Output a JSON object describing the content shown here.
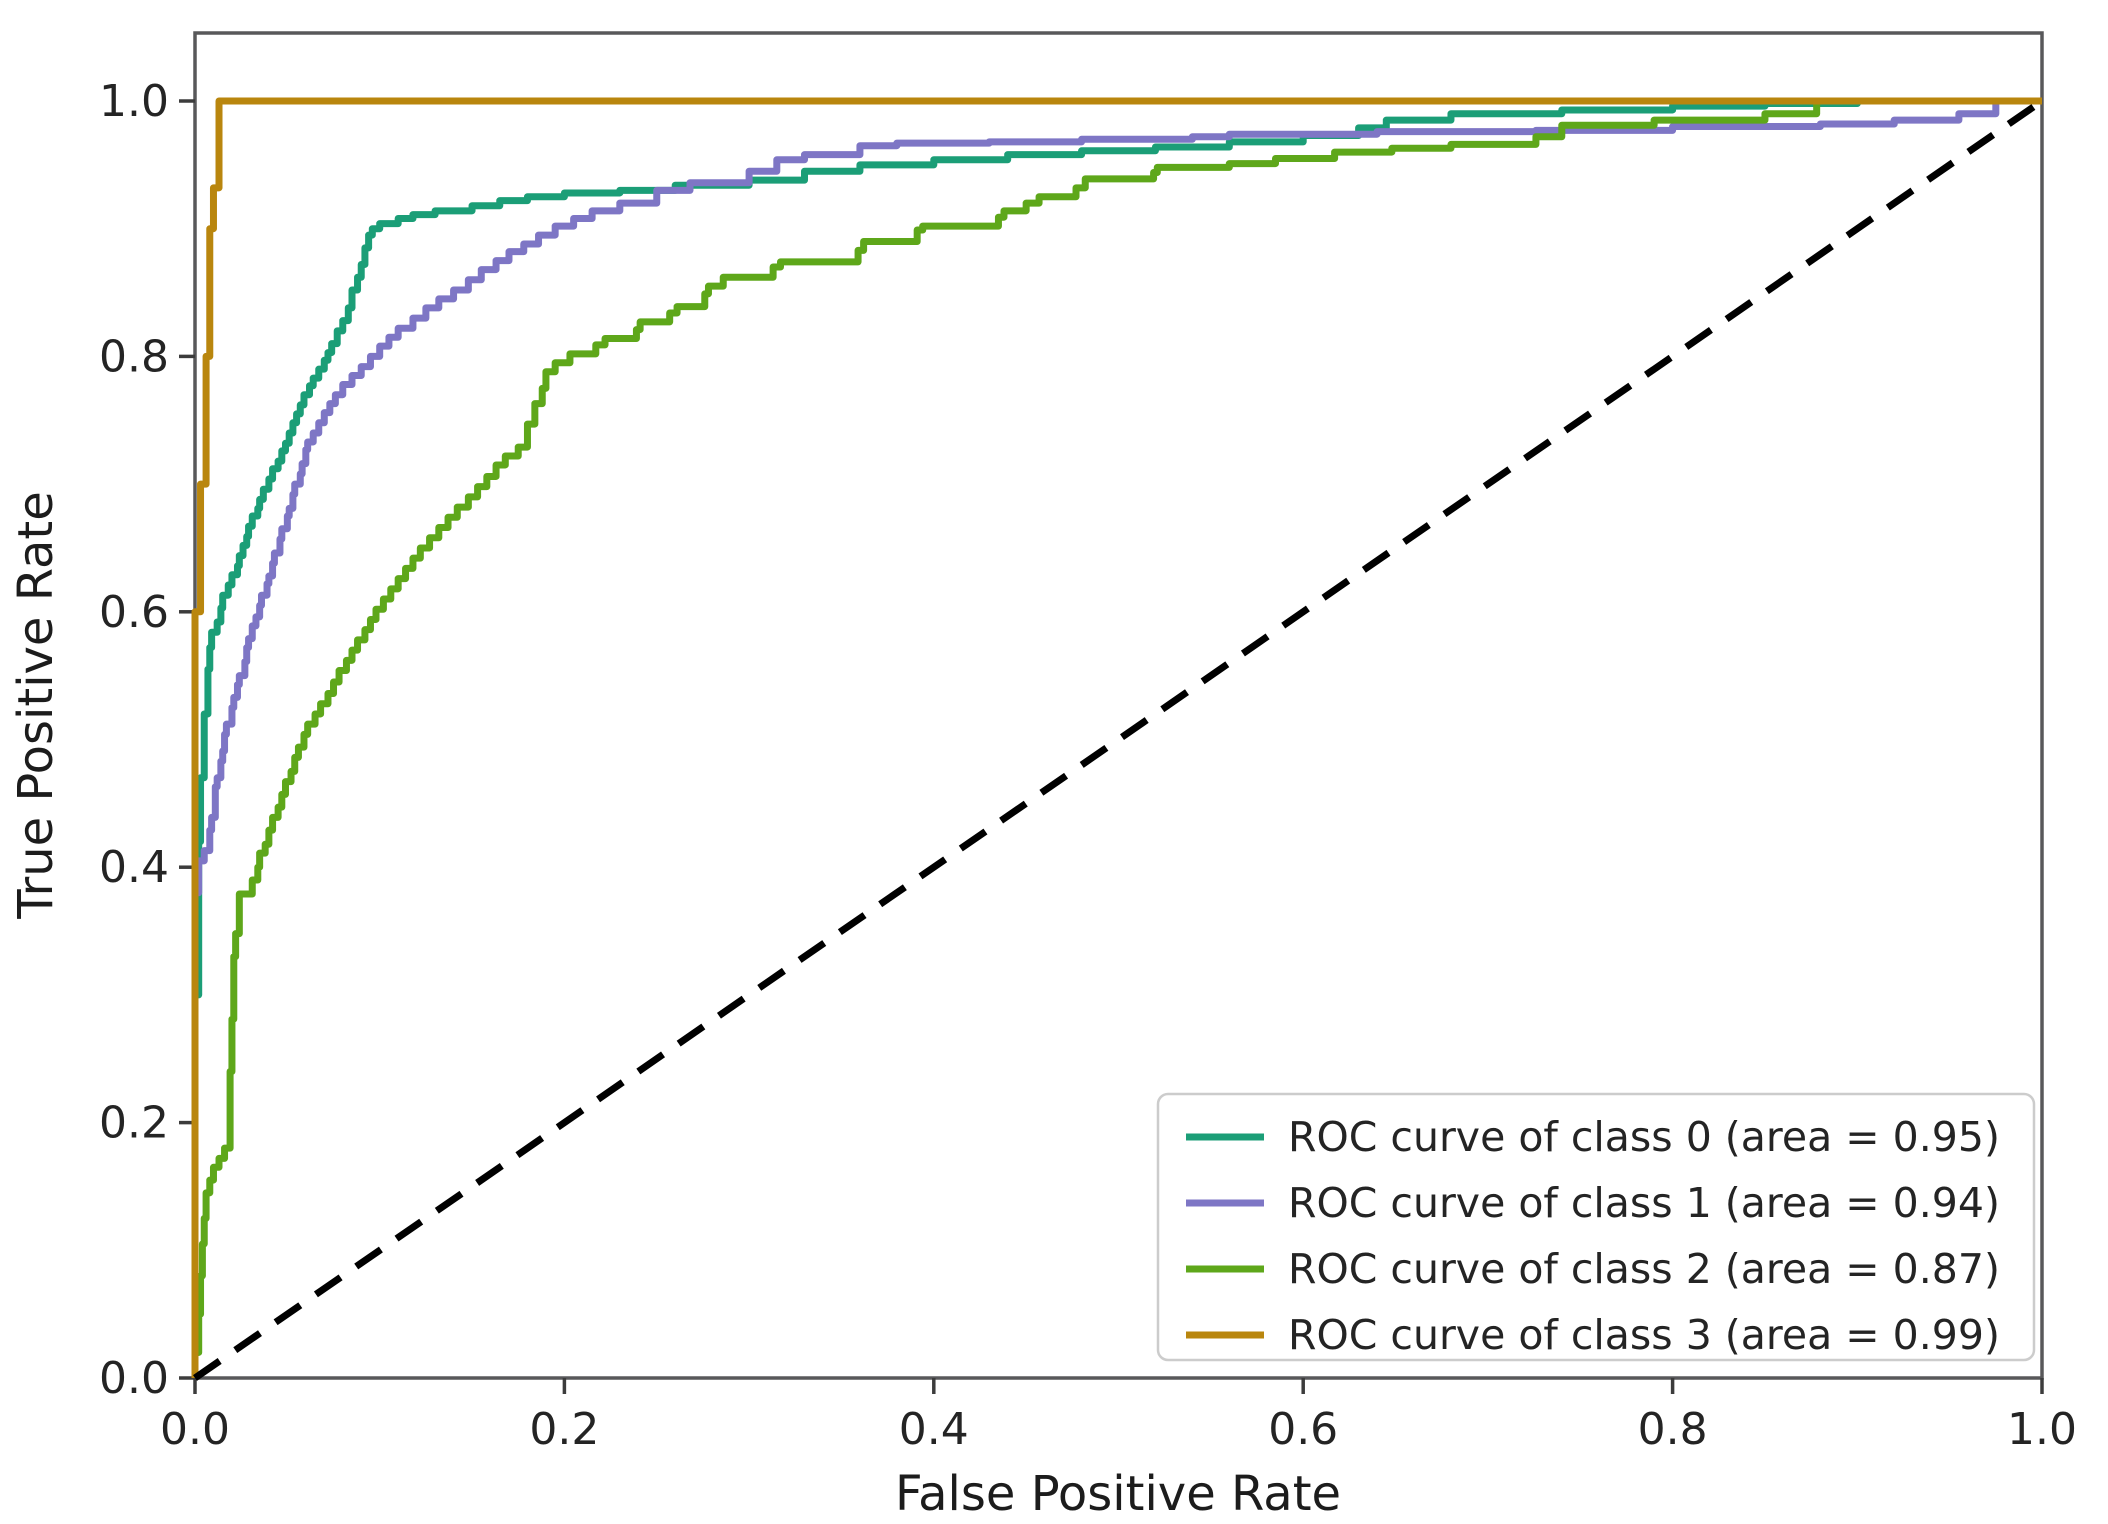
{
  "chart_data": {
    "type": "line",
    "title": "",
    "xlabel": "False Positive Rate",
    "ylabel": "True Positive Rate",
    "xlim": [
      0.0,
      1.0
    ],
    "ylim": [
      0.0,
      1.053
    ],
    "grid": false,
    "legend_position": "lower right",
    "x_tick_values": [
      0.0,
      0.2,
      0.4,
      0.6,
      0.8,
      1.0
    ],
    "x_tick_labels": [
      "0.0",
      "0.2",
      "0.4",
      "0.6",
      "0.8",
      "1.0"
    ],
    "y_tick_values": [
      0.0,
      0.2,
      0.4,
      0.6,
      0.8,
      1.0
    ],
    "y_tick_labels": [
      "0.0",
      "0.2",
      "0.4",
      "0.6",
      "0.8",
      "1.0"
    ],
    "series": [
      {
        "name": "roc-class-0",
        "label": "ROC curve of class 0 (area = 0.95)",
        "auc": 0.95,
        "color": "#1b9e77",
        "dash": null,
        "step": true,
        "points": [
          [
            0,
            0
          ],
          [
            0.002,
            0.3
          ],
          [
            0.003,
            0.42
          ],
          [
            0.005,
            0.47
          ],
          [
            0.007,
            0.52
          ],
          [
            0.008,
            0.555
          ],
          [
            0.009,
            0.572
          ],
          [
            0.012,
            0.584
          ],
          [
            0.014,
            0.592
          ],
          [
            0.015,
            0.603
          ],
          [
            0.018,
            0.613
          ],
          [
            0.02,
            0.621
          ],
          [
            0.023,
            0.629
          ],
          [
            0.024,
            0.636
          ],
          [
            0.026,
            0.644
          ],
          [
            0.028,
            0.652
          ],
          [
            0.029,
            0.659
          ],
          [
            0.031,
            0.667
          ],
          [
            0.034,
            0.675
          ],
          [
            0.035,
            0.681
          ],
          [
            0.037,
            0.688
          ],
          [
            0.04,
            0.696
          ],
          [
            0.042,
            0.704
          ],
          [
            0.045,
            0.712
          ],
          [
            0.047,
            0.718
          ],
          [
            0.049,
            0.726
          ],
          [
            0.051,
            0.732
          ],
          [
            0.053,
            0.74
          ],
          [
            0.055,
            0.748
          ],
          [
            0.057,
            0.755
          ],
          [
            0.059,
            0.762
          ],
          [
            0.062,
            0.77
          ],
          [
            0.064,
            0.777
          ],
          [
            0.067,
            0.783
          ],
          [
            0.07,
            0.79
          ],
          [
            0.072,
            0.797
          ],
          [
            0.074,
            0.803
          ],
          [
            0.077,
            0.81
          ],
          [
            0.08,
            0.82
          ],
          [
            0.083,
            0.828
          ],
          [
            0.085,
            0.838
          ],
          [
            0.088,
            0.852
          ],
          [
            0.09,
            0.862
          ],
          [
            0.092,
            0.872
          ],
          [
            0.094,
            0.885
          ],
          [
            0.096,
            0.895
          ],
          [
            0.1,
            0.9
          ],
          [
            0.11,
            0.904
          ],
          [
            0.118,
            0.908
          ],
          [
            0.13,
            0.911
          ],
          [
            0.15,
            0.914
          ],
          [
            0.165,
            0.918
          ],
          [
            0.18,
            0.922
          ],
          [
            0.2,
            0.925
          ],
          [
            0.23,
            0.928
          ],
          [
            0.26,
            0.93
          ],
          [
            0.3,
            0.934
          ],
          [
            0.33,
            0.938
          ],
          [
            0.36,
            0.945
          ],
          [
            0.4,
            0.95
          ],
          [
            0.44,
            0.954
          ],
          [
            0.48,
            0.958
          ],
          [
            0.52,
            0.961
          ],
          [
            0.56,
            0.964
          ],
          [
            0.6,
            0.968
          ],
          [
            0.63,
            0.973
          ],
          [
            0.645,
            0.979
          ],
          [
            0.68,
            0.985
          ],
          [
            0.74,
            0.99
          ],
          [
            0.8,
            0.993
          ],
          [
            0.85,
            0.996
          ],
          [
            0.9,
            0.998
          ],
          [
            0.95,
            1
          ],
          [
            1,
            1
          ]
        ]
      },
      {
        "name": "roc-class-1",
        "label": "ROC curve of class 1 (area = 0.94)",
        "auc": 0.94,
        "color": "#7e76c5",
        "dash": null,
        "step": true,
        "points": [
          [
            0,
            0
          ],
          [
            0.002,
            0.38
          ],
          [
            0.005,
            0.405
          ],
          [
            0.008,
            0.413
          ],
          [
            0.009,
            0.429
          ],
          [
            0.011,
            0.439
          ],
          [
            0.012,
            0.463
          ],
          [
            0.014,
            0.47
          ],
          [
            0.015,
            0.483
          ],
          [
            0.016,
            0.491
          ],
          [
            0.017,
            0.504
          ],
          [
            0.02,
            0.512
          ],
          [
            0.021,
            0.525
          ],
          [
            0.023,
            0.533
          ],
          [
            0.024,
            0.543
          ],
          [
            0.027,
            0.55
          ],
          [
            0.028,
            0.561
          ],
          [
            0.029,
            0.572
          ],
          [
            0.031,
            0.579
          ],
          [
            0.033,
            0.589
          ],
          [
            0.035,
            0.596
          ],
          [
            0.036,
            0.605
          ],
          [
            0.039,
            0.613
          ],
          [
            0.04,
            0.622
          ],
          [
            0.042,
            0.628
          ],
          [
            0.043,
            0.638
          ],
          [
            0.046,
            0.646
          ],
          [
            0.047,
            0.657
          ],
          [
            0.05,
            0.665
          ],
          [
            0.051,
            0.675
          ],
          [
            0.053,
            0.681
          ],
          [
            0.054,
            0.692
          ],
          [
            0.057,
            0.7
          ],
          [
            0.058,
            0.708
          ],
          [
            0.06,
            0.716
          ],
          [
            0.061,
            0.727
          ],
          [
            0.064,
            0.733
          ],
          [
            0.067,
            0.74
          ],
          [
            0.07,
            0.748
          ],
          [
            0.073,
            0.756
          ],
          [
            0.076,
            0.763
          ],
          [
            0.08,
            0.77
          ],
          [
            0.085,
            0.778
          ],
          [
            0.09,
            0.785
          ],
          [
            0.095,
            0.792
          ],
          [
            0.1,
            0.8
          ],
          [
            0.105,
            0.808
          ],
          [
            0.11,
            0.815
          ],
          [
            0.118,
            0.822
          ],
          [
            0.125,
            0.83
          ],
          [
            0.132,
            0.838
          ],
          [
            0.14,
            0.845
          ],
          [
            0.148,
            0.852
          ],
          [
            0.155,
            0.86
          ],
          [
            0.163,
            0.868
          ],
          [
            0.17,
            0.875
          ],
          [
            0.178,
            0.882
          ],
          [
            0.186,
            0.888
          ],
          [
            0.195,
            0.895
          ],
          [
            0.205,
            0.902
          ],
          [
            0.215,
            0.908
          ],
          [
            0.23,
            0.914
          ],
          [
            0.25,
            0.92
          ],
          [
            0.268,
            0.93
          ],
          [
            0.3,
            0.936
          ],
          [
            0.315,
            0.945
          ],
          [
            0.33,
            0.954
          ],
          [
            0.36,
            0.958
          ],
          [
            0.38,
            0.965
          ],
          [
            0.43,
            0.967
          ],
          [
            0.48,
            0.968
          ],
          [
            0.54,
            0.97
          ],
          [
            0.56,
            0.972
          ],
          [
            0.64,
            0.974
          ],
          [
            0.726,
            0.976
          ],
          [
            0.8,
            0.977
          ],
          [
            0.88,
            0.98
          ],
          [
            0.92,
            0.982
          ],
          [
            0.955,
            0.985
          ],
          [
            0.975,
            0.99
          ],
          [
            0.99,
            1
          ],
          [
            1,
            1
          ]
        ]
      },
      {
        "name": "roc-class-2",
        "label": "ROC curve of class 2 (area = 0.87)",
        "auc": 0.87,
        "color": "#5ea71a",
        "dash": null,
        "step": true,
        "points": [
          [
            0,
            0
          ],
          [
            0.002,
            0.02
          ],
          [
            0.003,
            0.05
          ],
          [
            0.004,
            0.08
          ],
          [
            0.005,
            0.105
          ],
          [
            0.006,
            0.125
          ],
          [
            0.008,
            0.145
          ],
          [
            0.01,
            0.155
          ],
          [
            0.013,
            0.165
          ],
          [
            0.016,
            0.172
          ],
          [
            0.019,
            0.18
          ],
          [
            0.02,
            0.24
          ],
          [
            0.021,
            0.281
          ],
          [
            0.022,
            0.33
          ],
          [
            0.024,
            0.348
          ],
          [
            0.031,
            0.379
          ],
          [
            0.034,
            0.39
          ],
          [
            0.035,
            0.4
          ],
          [
            0.038,
            0.411
          ],
          [
            0.04,
            0.418
          ],
          [
            0.042,
            0.429
          ],
          [
            0.045,
            0.439
          ],
          [
            0.047,
            0.447
          ],
          [
            0.049,
            0.457
          ],
          [
            0.052,
            0.467
          ],
          [
            0.054,
            0.475
          ],
          [
            0.056,
            0.486
          ],
          [
            0.059,
            0.494
          ],
          [
            0.061,
            0.504
          ],
          [
            0.065,
            0.512
          ],
          [
            0.068,
            0.52
          ],
          [
            0.072,
            0.528
          ],
          [
            0.075,
            0.536
          ],
          [
            0.078,
            0.545
          ],
          [
            0.082,
            0.554
          ],
          [
            0.085,
            0.562
          ],
          [
            0.088,
            0.57
          ],
          [
            0.092,
            0.578
          ],
          [
            0.095,
            0.586
          ],
          [
            0.098,
            0.594
          ],
          [
            0.102,
            0.602
          ],
          [
            0.106,
            0.61
          ],
          [
            0.11,
            0.618
          ],
          [
            0.114,
            0.626
          ],
          [
            0.118,
            0.634
          ],
          [
            0.122,
            0.642
          ],
          [
            0.127,
            0.65
          ],
          [
            0.132,
            0.658
          ],
          [
            0.137,
            0.666
          ],
          [
            0.142,
            0.674
          ],
          [
            0.148,
            0.682
          ],
          [
            0.153,
            0.69
          ],
          [
            0.158,
            0.698
          ],
          [
            0.163,
            0.706
          ],
          [
            0.168,
            0.715
          ],
          [
            0.175,
            0.722
          ],
          [
            0.18,
            0.729
          ],
          [
            0.184,
            0.747
          ],
          [
            0.188,
            0.763
          ],
          [
            0.19,
            0.775
          ],
          [
            0.195,
            0.788
          ],
          [
            0.203,
            0.795
          ],
          [
            0.217,
            0.802
          ],
          [
            0.222,
            0.809
          ],
          [
            0.239,
            0.814
          ],
          [
            0.241,
            0.821
          ],
          [
            0.257,
            0.827
          ],
          [
            0.261,
            0.834
          ],
          [
            0.276,
            0.839
          ],
          [
            0.278,
            0.849
          ],
          [
            0.286,
            0.855
          ],
          [
            0.313,
            0.862
          ],
          [
            0.317,
            0.87
          ],
          [
            0.359,
            0.874
          ],
          [
            0.362,
            0.883
          ],
          [
            0.391,
            0.89
          ],
          [
            0.394,
            0.899
          ],
          [
            0.435,
            0.902
          ],
          [
            0.438,
            0.909
          ],
          [
            0.45,
            0.914
          ],
          [
            0.457,
            0.92
          ],
          [
            0.477,
            0.925
          ],
          [
            0.482,
            0.932
          ],
          [
            0.519,
            0.939
          ],
          [
            0.521,
            0.944
          ],
          [
            0.56,
            0.948
          ],
          [
            0.585,
            0.951
          ],
          [
            0.617,
            0.955
          ],
          [
            0.648,
            0.96
          ],
          [
            0.68,
            0.963
          ],
          [
            0.726,
            0.966
          ],
          [
            0.74,
            0.972
          ],
          [
            0.79,
            0.981
          ],
          [
            0.85,
            0.985
          ],
          [
            0.878,
            0.99
          ],
          [
            0.9,
            1
          ],
          [
            1,
            1
          ]
        ]
      },
      {
        "name": "roc-class-3",
        "label": "ROC curve of class 3 (area = 0.99)",
        "auc": 0.99,
        "color": "#b9860e",
        "dash": null,
        "step": true,
        "points": [
          [
            0,
            0
          ],
          [
            0.003,
            0.6
          ],
          [
            0.006,
            0.7
          ],
          [
            0.008,
            0.8
          ],
          [
            0.01,
            0.9
          ],
          [
            0.013,
            0.932
          ],
          [
            0.017,
            1
          ],
          [
            1,
            1
          ]
        ]
      },
      {
        "name": "chance-diagonal",
        "label": null,
        "color": "#000000",
        "dash": [
          30,
          19
        ],
        "step": false,
        "points": [
          [
            0,
            0
          ],
          [
            1,
            1
          ]
        ]
      }
    ]
  },
  "legend": {
    "items": [
      {
        "label": "ROC curve of class 0 (area = 0.95)"
      },
      {
        "label": "ROC curve of class 1 (area = 0.94)"
      },
      {
        "label": "ROC curve of class 2 (area = 0.87)"
      },
      {
        "label": "ROC curve of class 3 (area = 0.99)"
      }
    ]
  }
}
